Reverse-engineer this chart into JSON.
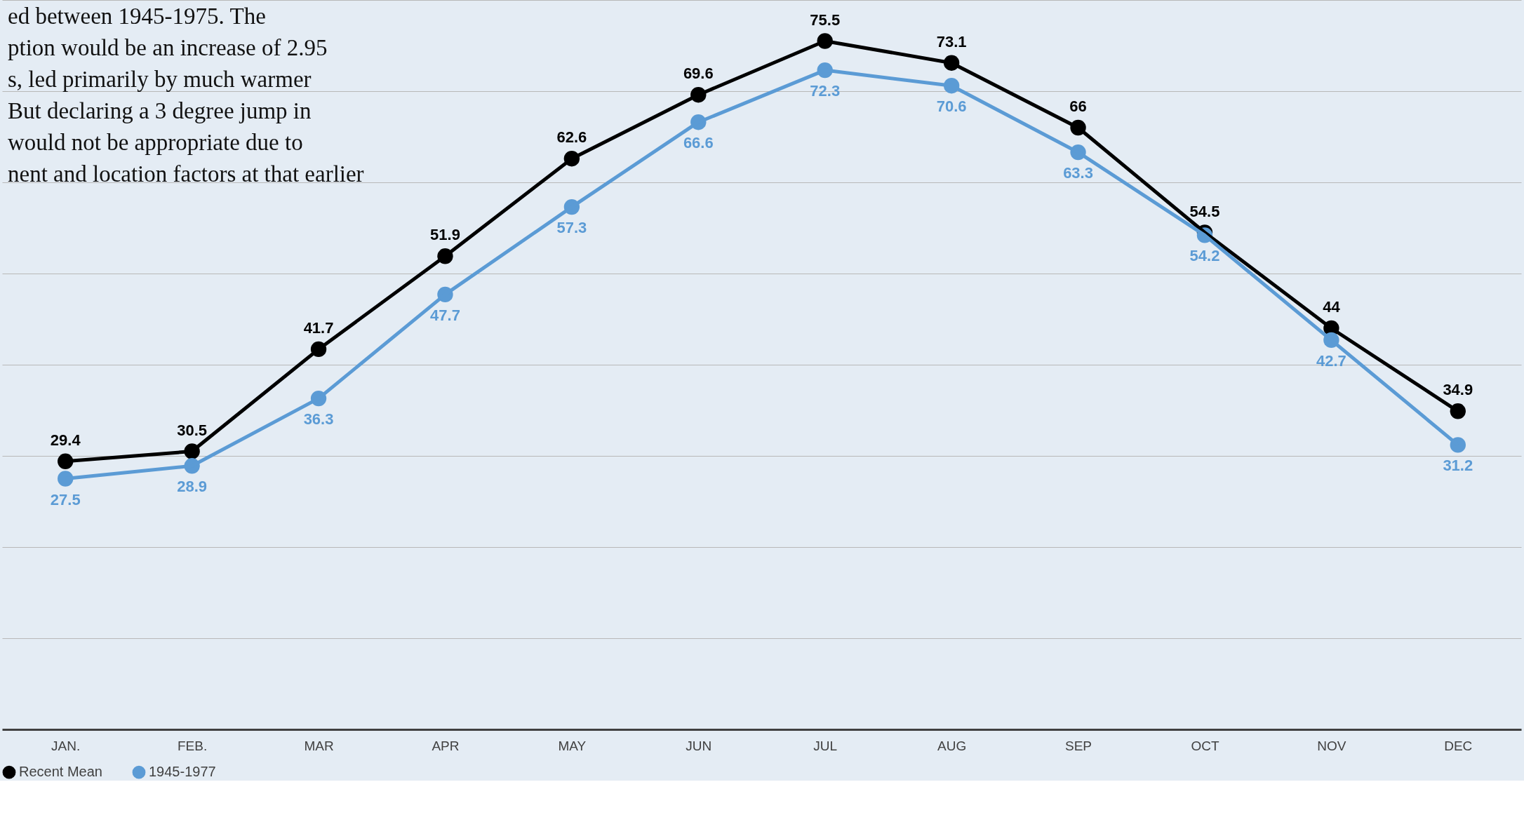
{
  "chart_data": {
    "type": "line",
    "categories": [
      "JAN.",
      "FEB.",
      "MAR",
      "APR",
      "MAY",
      "JUN",
      "JUL",
      "AUG",
      "SEP",
      "OCT",
      "NOV",
      "DEC"
    ],
    "series": [
      {
        "name": "Recent Mean",
        "color": "#000000",
        "values": [
          29.4,
          30.5,
          41.7,
          51.9,
          62.6,
          69.6,
          75.5,
          73.1,
          66,
          54.5,
          44,
          34.9
        ]
      },
      {
        "name": "1945-1977",
        "color": "#5b9bd5",
        "values": [
          27.5,
          28.9,
          36.3,
          47.7,
          57.3,
          66.6,
          72.3,
          70.6,
          63.3,
          54.2,
          42.7,
          31.2
        ]
      }
    ],
    "annotations": [
      "ed between 1945-1975. The",
      "ption would be an increase of 2.95",
      "s, led primarily by much warmer",
      " But declaring a 3 degree jump in",
      "would not be appropriate due to",
      "nent and location factors at that earlier"
    ],
    "ylim": [
      0,
      80
    ],
    "yticks": [
      {
        "value": 10,
        "label": null
      },
      {
        "value": 20,
        "label": null
      },
      {
        "value": 30,
        "label": null
      },
      {
        "value": 40,
        "label": null
      },
      {
        "value": 50,
        "label": null
      },
      {
        "value": 60,
        "label": null
      },
      {
        "value": 70,
        "label": null
      },
      {
        "value": 80,
        "label": null
      }
    ],
    "tick_labels": "x",
    "grid": "y",
    "legend": "bottom",
    "marker": "circle",
    "line_style": "solid",
    "data_labels": true
  }
}
